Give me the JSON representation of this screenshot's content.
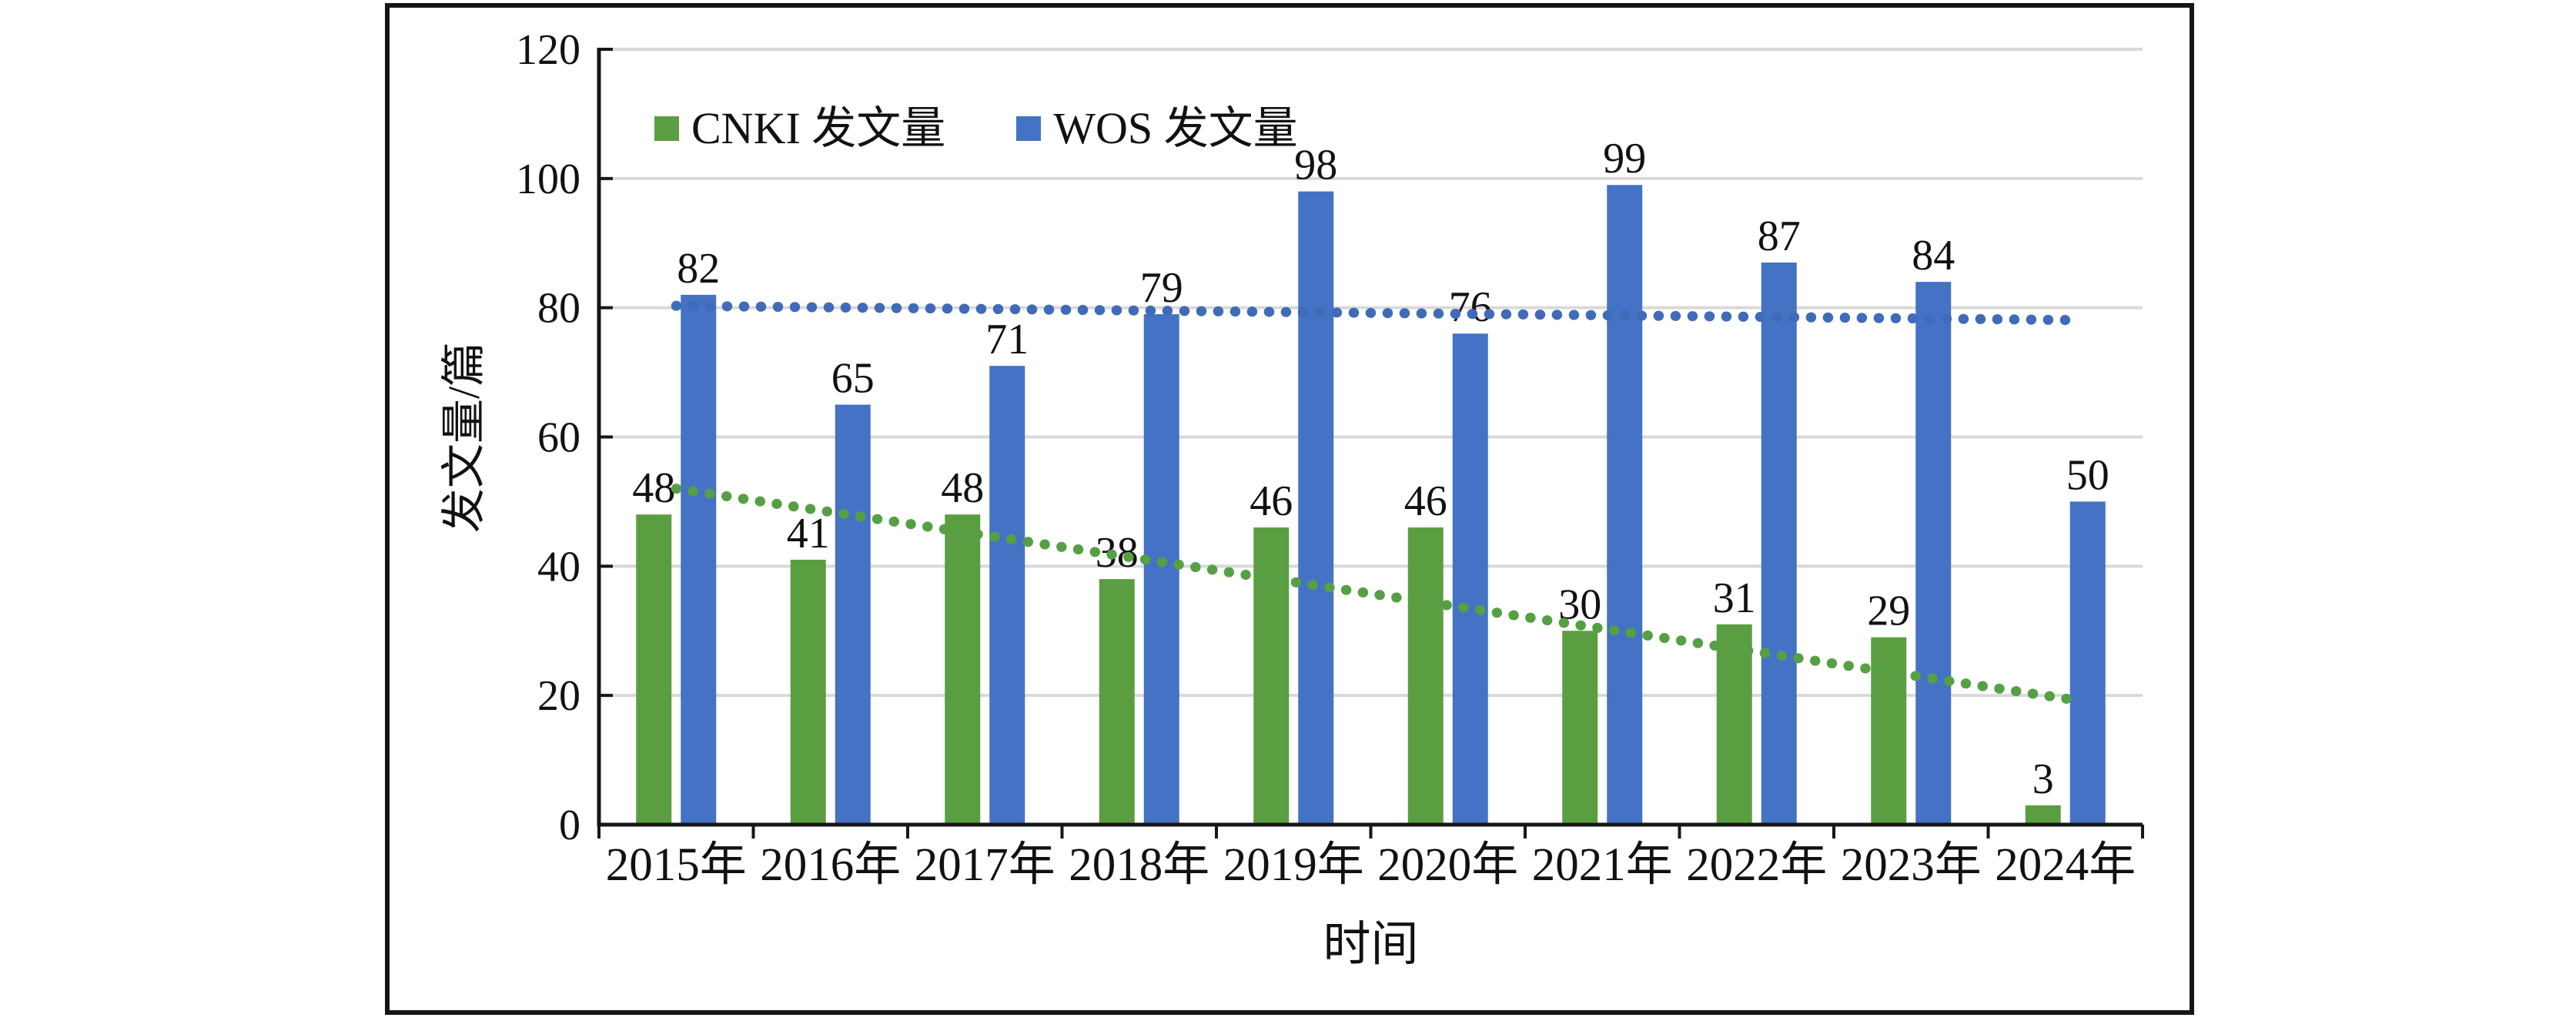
{
  "figure": {
    "frame_border_color": "#161616",
    "background_color": "#ffffff",
    "gridline_color": "#d9d9d9",
    "axis_color": "#161616",
    "text_color": "#111111"
  },
  "legend": {
    "items": [
      {
        "label": "CNKI 发文量",
        "color": "#5B9E41"
      },
      {
        "label": "WOS 发文量",
        "color": "#4472C4"
      }
    ]
  },
  "chart_data": {
    "type": "bar",
    "title": "",
    "xlabel": "时间",
    "ylabel": "发文量/篇",
    "categories": [
      "2015年",
      "2016年",
      "2017年",
      "2018年",
      "2019年",
      "2020年",
      "2021年",
      "2022年",
      "2023年",
      "2024年"
    ],
    "series": [
      {
        "name": "CNKI 发文量",
        "color": "#5B9E41",
        "values": [
          48,
          41,
          48,
          38,
          46,
          46,
          30,
          31,
          29,
          3
        ],
        "trendline": {
          "style": "dotted",
          "color": "#55A044",
          "start_value": 52,
          "end_value": 19.4
        }
      },
      {
        "name": "WOS 发文量",
        "color": "#4472C4",
        "values": [
          82,
          65,
          71,
          79,
          98,
          76,
          99,
          87,
          84,
          50
        ],
        "trendline": {
          "style": "dotted",
          "color": "#3F6BB8",
          "start_value": 80.3,
          "end_value": 78.1
        }
      }
    ],
    "ylim": [
      0,
      120
    ],
    "yticks": [
      0,
      20,
      40,
      60,
      80,
      100,
      120
    ],
    "grid": true,
    "legend_position": "top-left-inside",
    "data_labels": true
  }
}
